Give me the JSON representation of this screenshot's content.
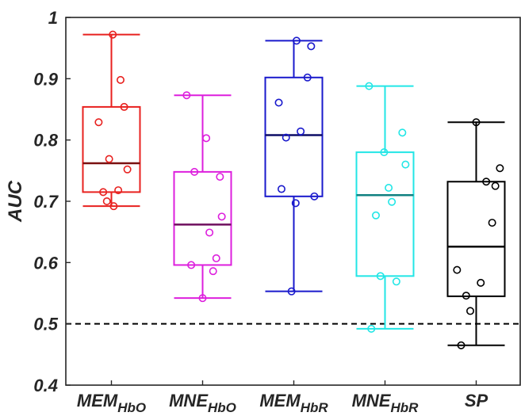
{
  "chart_data": {
    "type": "box",
    "ylabel": "AUC",
    "xlabel": "",
    "ylim": [
      0.4,
      1.0
    ],
    "yticks": [
      "0.4",
      "0.5",
      "0.6",
      "0.7",
      "0.8",
      "0.9",
      "1"
    ],
    "grid": false,
    "reference_line": {
      "y": 0.5,
      "style": "dashed",
      "color": "#000000"
    },
    "categories": [
      {
        "label": "MEM",
        "subscript": "HbO"
      },
      {
        "label": "MNE",
        "subscript": "HbO"
      },
      {
        "label": "MEM",
        "subscript": "HbR"
      },
      {
        "label": "MNE",
        "subscript": "HbR"
      },
      {
        "label": "SP",
        "subscript": ""
      }
    ],
    "series": [
      {
        "color": "#e8211f",
        "median_color": "#7a1010",
        "min": 0.692,
        "q1": 0.715,
        "median": 0.762,
        "q3": 0.854,
        "max": 0.972,
        "points": [
          [
            -0.28,
            0.829
          ],
          [
            -0.18,
            0.715
          ],
          [
            -0.1,
            0.7
          ],
          [
            -0.05,
            0.769
          ],
          [
            0.03,
            0.972
          ],
          [
            0.05,
            0.692
          ],
          [
            0.15,
            0.718
          ],
          [
            0.2,
            0.898
          ],
          [
            0.28,
            0.854
          ],
          [
            0.35,
            0.752
          ]
        ]
      },
      {
        "color": "#dd1fdd",
        "median_color": "#6e0f5e",
        "min": 0.542,
        "q1": 0.596,
        "median": 0.662,
        "q3": 0.748,
        "max": 0.873,
        "points": [
          [
            -0.35,
            0.873
          ],
          [
            -0.25,
            0.596
          ],
          [
            -0.18,
            0.748
          ],
          [
            0.0,
            0.542
          ],
          [
            0.08,
            0.803
          ],
          [
            0.15,
            0.649
          ],
          [
            0.23,
            0.586
          ],
          [
            0.3,
            0.607
          ],
          [
            0.38,
            0.74
          ],
          [
            0.42,
            0.675
          ]
        ]
      },
      {
        "color": "#1a1acc",
        "median_color": "#0d0d66",
        "min": 0.553,
        "q1": 0.708,
        "median": 0.808,
        "q3": 0.902,
        "max": 0.962,
        "points": [
          [
            -0.33,
            0.861
          ],
          [
            -0.27,
            0.72
          ],
          [
            -0.17,
            0.804
          ],
          [
            -0.05,
            0.553
          ],
          [
            0.04,
            0.697
          ],
          [
            0.06,
            0.962
          ],
          [
            0.15,
            0.814
          ],
          [
            0.3,
            0.902
          ],
          [
            0.38,
            0.953
          ],
          [
            0.45,
            0.708
          ]
        ]
      },
      {
        "color": "#22e6e6",
        "median_color": "#108080",
        "min": 0.492,
        "q1": 0.578,
        "median": 0.71,
        "q3": 0.78,
        "max": 0.888,
        "points": [
          [
            -0.35,
            0.888
          ],
          [
            -0.3,
            0.492
          ],
          [
            -0.2,
            0.677
          ],
          [
            -0.1,
            0.578
          ],
          [
            -0.02,
            0.78
          ],
          [
            0.08,
            0.722
          ],
          [
            0.15,
            0.699
          ],
          [
            0.25,
            0.569
          ],
          [
            0.38,
            0.812
          ],
          [
            0.45,
            0.76
          ]
        ]
      },
      {
        "color": "#000000",
        "median_color": "#000000",
        "min": 0.465,
        "q1": 0.545,
        "median": 0.626,
        "q3": 0.732,
        "max": 0.829,
        "points": [
          [
            -0.42,
            0.588
          ],
          [
            -0.33,
            0.465
          ],
          [
            -0.22,
            0.546
          ],
          [
            -0.13,
            0.521
          ],
          [
            0.0,
            0.829
          ],
          [
            0.1,
            0.567
          ],
          [
            0.22,
            0.732
          ],
          [
            0.35,
            0.665
          ],
          [
            0.42,
            0.725
          ],
          [
            0.52,
            0.754
          ]
        ]
      }
    ]
  }
}
